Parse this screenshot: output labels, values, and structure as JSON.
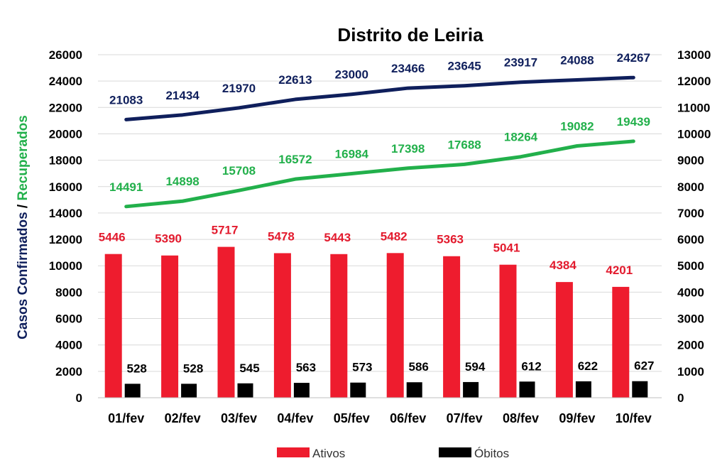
{
  "chart_data": {
    "type": "bar",
    "title": "Distrito de Leiria",
    "ylabel_parts": [
      "Casos Confirmados",
      " / ",
      "Recuperados"
    ],
    "categories": [
      "01/fev",
      "02/fev",
      "03/fev",
      "04/fev",
      "05/fev",
      "06/fev",
      "07/fev",
      "08/fev",
      "09/fev",
      "10/fev"
    ],
    "left_axis": {
      "min": 0,
      "max": 26000,
      "step": 2000,
      "ticks": [
        "0",
        "2000",
        "4000",
        "6000",
        "8000",
        "10000",
        "12000",
        "14000",
        "16000",
        "18000",
        "20000",
        "22000",
        "24000",
        "26000"
      ]
    },
    "right_axis": {
      "min": 0,
      "max": 13000,
      "step": 1000,
      "ticks": [
        "0",
        "1000",
        "2000",
        "3000",
        "4000",
        "5000",
        "6000",
        "7000",
        "8000",
        "9000",
        "10000",
        "11000",
        "12000",
        "13000"
      ]
    },
    "grid": true,
    "legend_position": "bottom",
    "series": [
      {
        "name": "",
        "type": "line",
        "axis": "left",
        "color": "#0f1f5c",
        "values": [
          21083,
          21434,
          21970,
          22613,
          23000,
          23466,
          23645,
          23917,
          24088,
          24267
        ],
        "labels": [
          "21083",
          "21434",
          "21970",
          "22613",
          "23000",
          "23466",
          "23645",
          "23917",
          "24088",
          "24267"
        ]
      },
      {
        "name": "",
        "type": "line",
        "axis": "left",
        "color": "#22b04b",
        "values": [
          14491,
          14898,
          15708,
          16572,
          16984,
          17398,
          17688,
          18264,
          19082,
          19439
        ],
        "labels": [
          "14491",
          "14898",
          "15708",
          "16572",
          "16984",
          "17398",
          "17688",
          "18264",
          "19082",
          "19439"
        ]
      },
      {
        "name": "Ativos",
        "type": "bar",
        "axis": "right",
        "color": "#ee1c2e",
        "label_color": "#e31b2e",
        "values": [
          5446,
          5390,
          5717,
          5478,
          5443,
          5482,
          5363,
          5041,
          4384,
          4201
        ],
        "labels": [
          "5446",
          "5390",
          "5717",
          "5478",
          "5443",
          "5482",
          "5363",
          "5041",
          "4384",
          "4201"
        ]
      },
      {
        "name": "Óbitos",
        "type": "bar",
        "axis": "right",
        "color": "#000000",
        "label_color": "#000000",
        "values": [
          528,
          528,
          545,
          563,
          573,
          586,
          594,
          612,
          622,
          627
        ],
        "labels": [
          "528",
          "528",
          "545",
          "563",
          "573",
          "586",
          "594",
          "612",
          "622",
          "627"
        ]
      }
    ]
  }
}
